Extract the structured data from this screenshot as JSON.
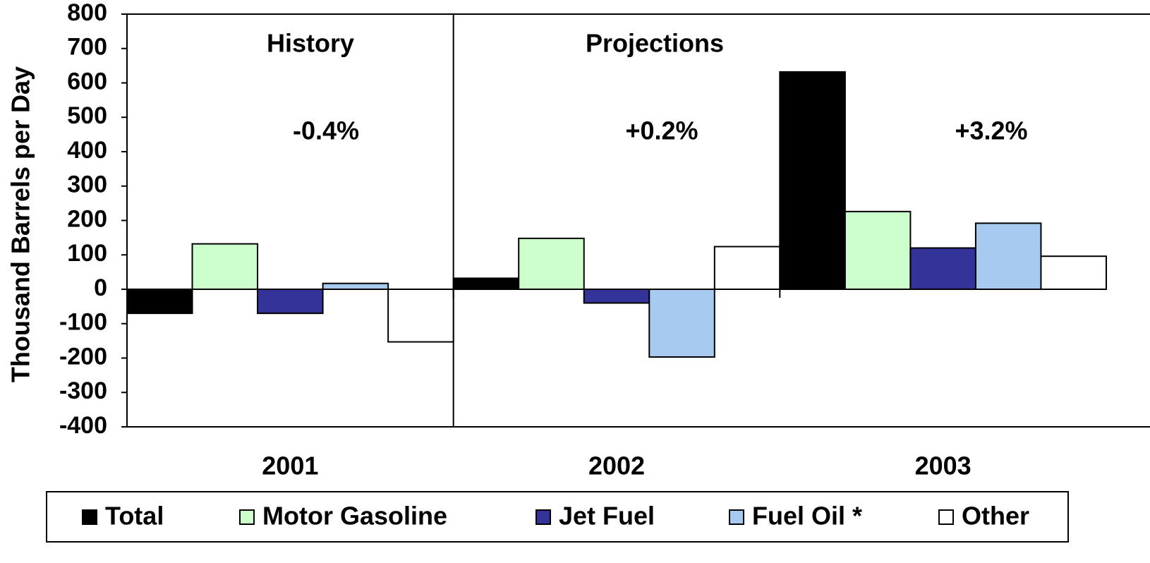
{
  "chart_data": {
    "type": "bar",
    "y_label": "Thousand Barrels per Day",
    "categories": [
      "2001",
      "2002",
      "2003"
    ],
    "series": [
      {
        "name": "Total",
        "color": "#000000",
        "values": [
          -70,
          32,
          632
        ]
      },
      {
        "name": "Motor Gasoline",
        "color": "#ccffcc",
        "values": [
          132,
          148,
          226
        ]
      },
      {
        "name": "Jet Fuel",
        "color": "#333399",
        "values": [
          -70,
          -40,
          120
        ]
      },
      {
        "name": "Fuel Oil *",
        "color": "#a6caf0",
        "values": [
          17,
          -197,
          192
        ]
      },
      {
        "name": "Other",
        "color": "#ffffff",
        "values": [
          -153,
          124,
          96
        ]
      }
    ],
    "annotations": [
      "History",
      "Projections",
      "-0.4%",
      "+0.2%",
      "+3.2%"
    ],
    "ylim": [
      -400,
      800
    ],
    "yticks": [
      -400,
      -300,
      -200,
      -100,
      0,
      100,
      200,
      300,
      400,
      500,
      600,
      700,
      800
    ],
    "grid": false,
    "legend": "bottom"
  }
}
